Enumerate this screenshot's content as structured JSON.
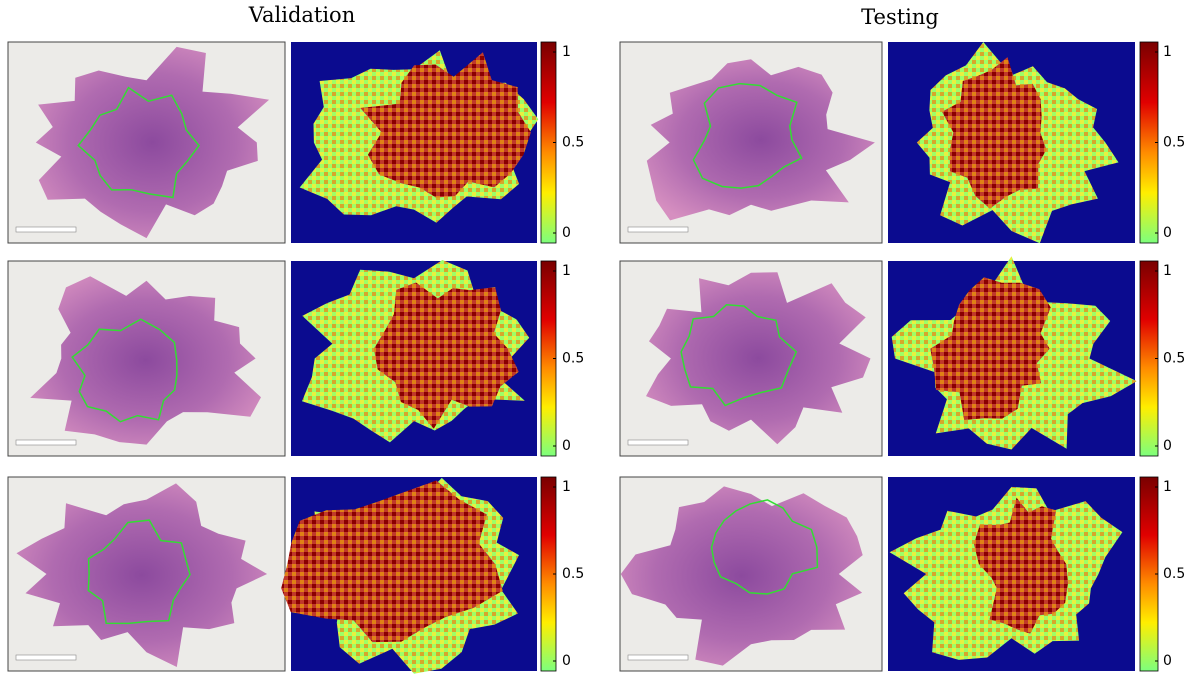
{
  "columns": [
    {
      "title": "Validation",
      "rows": [
        {
          "colorbar_ticks": [
            "1",
            "0.5",
            "0"
          ]
        },
        {
          "colorbar_ticks": [
            "1",
            "0.5",
            "0"
          ]
        },
        {
          "colorbar_ticks": [
            "1",
            "0.5",
            "0"
          ]
        }
      ]
    },
    {
      "title": "Testing",
      "rows": [
        {
          "colorbar_ticks": [
            "1",
            "0.5",
            "0"
          ]
        },
        {
          "colorbar_ticks": [
            "1",
            "0.5",
            "0"
          ]
        },
        {
          "colorbar_ticks": [
            "1",
            "0.5",
            "0"
          ]
        }
      ]
    }
  ]
}
